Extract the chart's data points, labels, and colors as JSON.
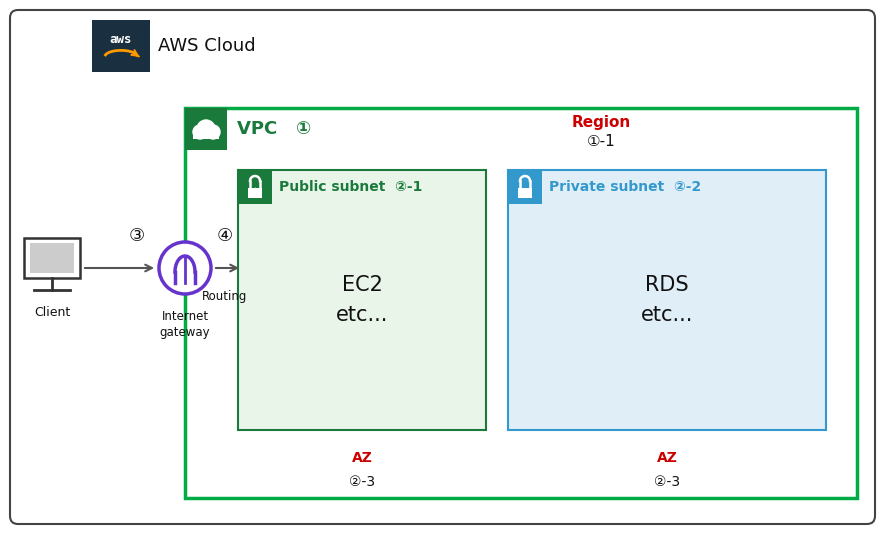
{
  "bg_color": "#ffffff",
  "outer_border_color": "#444444",
  "aws_logo_bg": "#1a2f3f",
  "aws_cloud_label": "AWS Cloud",
  "vpc_border_color": "#00aa44",
  "vpc_icon_color": "#1a7a3c",
  "vpc_label": "VPC",
  "vpc_num": "①",
  "region_label": "Region",
  "region_num": "①-1",
  "region_color": "#cc0000",
  "public_subnet_bg": "#eaf5ea",
  "public_subnet_border": "#1a7a3c",
  "public_subnet_icon_bg": "#1a7a3c",
  "public_subnet_label": "Public subnet",
  "public_subnet_num": "②-1",
  "private_subnet_bg": "#e0eef8",
  "private_subnet_border": "#3399cc",
  "private_subnet_icon_bg": "#3399cc",
  "private_subnet_label": "Private subnet",
  "private_subnet_num": "②-2",
  "ec2_label": "EC2\netc...",
  "rds_label": "RDS\netc...",
  "az_label": "AZ",
  "az_num": "②-3",
  "az_color": "#cc0000",
  "arrow_color": "#555555",
  "igw_circle_color": "#6633cc",
  "igw_circle_edge": "#6633cc",
  "igw_label": "Internet\ngateway",
  "routing_label": "Routing",
  "num3": "③",
  "num4": "④",
  "green_dark": "#1a7a3c",
  "orange": "#ff9900"
}
